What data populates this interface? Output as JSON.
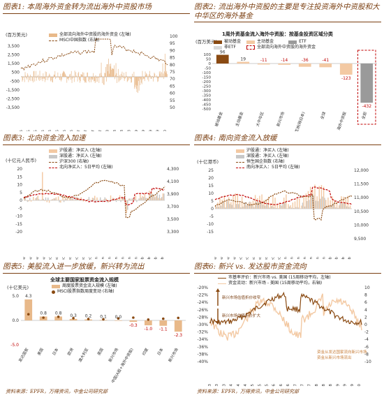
{
  "charts": {
    "c1": {
      "title": "图表1: 本周海外资金转为流出海外中资股市场",
      "unit": "(百万美元)",
      "legend": [
        "全部流向海外中资股的海外资金 (左轴)",
        "MSCI中国指数 (右轴)"
      ],
      "colors": {
        "bar": "#e8b98a",
        "line": "#8a4a12"
      },
      "y_left_ticks": [
        "3,500",
        "2,500",
        "1,500",
        "500",
        "-500",
        "-1,500",
        "-2,500",
        "-3,500"
      ],
      "y_right_ticks": [
        "100",
        "95",
        "90",
        "85",
        "80",
        "75",
        "70",
        "65",
        "60",
        "55",
        "50"
      ],
      "x_ticks": [
        "Jan-15",
        "Apr-15",
        "Jul-15",
        "Oct-15",
        "Jan-16",
        "Apr-16",
        "Jul-16",
        "Oct-16",
        "Jan-17",
        "Apr-17",
        "Jul-17",
        "Oct-17",
        "Jan-18",
        "Apr-18",
        "Jul-18",
        "Oct-18",
        "Jan-19",
        "Apr-19",
        "Jul-19",
        "Oct-19",
        "Jan-20"
      ]
    },
    "c2": {
      "title": "图表2: 流出海外中资股的主要是专注投资海外中资股和大中华区的海外基金",
      "inner_title": "1周外资基金流入海外中资股：按基金投资区域分类",
      "unit": "(百万美元)",
      "legend": [
        "被动基金",
        "主动基金",
        "ETF",
        "非ETF",
        "全部流向海外中资股的海外资金"
      ],
      "colors": {
        "passive": "#8a4a12",
        "active": "#f3c9a3",
        "etf": "#9a9a9a",
        "nonetf": "#d9d9d9",
        "total": "#c00000"
      },
      "y_ticks": [
        "100",
        "50",
        "0",
        "-50",
        "-100",
        "-150",
        "-200",
        "-250",
        "-300",
        "-350",
        "-400",
        "-450",
        "-500"
      ]
    },
    "c3": {
      "title": "图表3: 北向资金流入加速",
      "unit": "(十亿元人民币)",
      "legend": [
        "沪股通：净买入 (左轴)",
        "深股通：净买入 (左轴)",
        "沪深300 (右轴)",
        "北向净买入：5日平均 (左轴)"
      ],
      "colors": {
        "sh": "#f3c9a3",
        "sz": "#c8c8c8",
        "csi": "#8a4a12",
        "avg": "#c00000"
      },
      "y_left_ticks": [
        "20",
        "15",
        "10",
        "5",
        "0",
        "-5",
        "-10",
        "-15",
        "-20"
      ],
      "y_right_ticks": [
        "4,300",
        "4,100",
        "3,900",
        "3,700",
        "3,500",
        "3,300"
      ],
      "x_ticks": [
        "18-Nov",
        "21-Nov",
        "26-Nov",
        "29-Nov",
        "4-Dec",
        "9-Dec",
        "12-Dec",
        "17-Dec",
        "20-Dec",
        "25-Dec",
        "30-Dec",
        "3-Jan",
        "8-Jan",
        "13-Jan",
        "16-Jan",
        "21-Jan",
        "24-Jan",
        "29-Jan",
        "5-Feb",
        "10-Feb",
        "13-Feb",
        "18-Feb"
      ]
    },
    "c4": {
      "title": "图表4: 南向资金流入放缓",
      "unit": "(十亿港币)",
      "legend": [
        "沪股通：净买入 (左轴)",
        "深股通：净买入 (左轴)",
        "恒生国企指数 (右轴)",
        "南向净买入：5日平均 (左轴)"
      ],
      "colors": {
        "sh": "#f3c9a3",
        "sz": "#c8c8c8",
        "hscei": "#8a4a12",
        "avg": "#c00000"
      },
      "y_left_ticks": [
        "25",
        "20",
        "15",
        "10",
        "5",
        "0",
        "-5",
        "-10",
        "-15"
      ],
      "y_right_ticks": [
        "12,000",
        "11,500",
        "11,000",
        "10,500",
        "10,000",
        "9,500"
      ],
      "x_ticks": [
        "18-Nov",
        "21-Nov",
        "26-Nov",
        "29-Nov",
        "4-Dec",
        "9-Dec",
        "12-Dec",
        "17-Dec",
        "20-Dec",
        "25-Dec",
        "30-Dec",
        "3-Jan",
        "8-Jan",
        "13-Jan",
        "16-Jan",
        "21-Jan",
        "24-Jan",
        "29-Jan",
        "5-Feb",
        "10-Feb",
        "13-Feb",
        "18-Feb"
      ]
    },
    "c5": {
      "title": "图表5: 美股流入进一步放缓，新兴转为流出",
      "inner_title": "全球主要国家股票资金流入规模",
      "unit": "(十亿美元)",
      "legend": [
        "周度股票资金流入规模 (左轴)",
        "MSCI股票指数周度变动 (右轴)"
      ],
      "colors": {
        "bar": "#e8b98a",
        "dot": "#8a4a12"
      },
      "y_ticks": [
        "5.0",
        "0.0",
        "-5.0"
      ],
      "categories": [
        "发达国家",
        "美国",
        "日本",
        "欧洲",
        "澳大利亚",
        "英国",
        "新兴市场",
        "中国(A股+海外中资股)",
        "印度",
        "日本",
        "新兴市场"
      ],
      "values_label": [
        "4.3",
        "0.8",
        "0.8",
        "0.3",
        "0.2",
        "0.1",
        "0.0",
        "-0.3",
        "-1.0",
        "-1.1",
        "-2.3"
      ]
    },
    "c6": {
      "title": "图表6: 新兴 vs. 发达股市资金流向",
      "legend": [
        "市基率评价：新兴市场 vs. 美国 (15周移动平均，左轴)",
        "资金流动：新兴市场 - 美国 (15周移动平均，右轴)"
      ],
      "annotations": [
        "新兴市场估值折价收窄",
        "新兴市场估值折价扩大",
        "资金从发达国家流向新兴市场",
        "资金从新兴市场流出"
      ],
      "colors": {
        "pb": "#8a4a12",
        "flow": "#f3c9a3"
      },
      "y_left_ticks": [
        "-20%",
        "-22%",
        "-24%",
        "-26%",
        "-28%",
        "-30%",
        "-32%",
        "-34%",
        "-36%",
        "-38%",
        "-40%"
      ],
      "y_right_ticks": [
        "10",
        "8",
        "6",
        "4",
        "2",
        "0",
        "-2",
        "-4",
        "-6",
        "-8",
        "-10"
      ],
      "x_ticks": [
        "Jan-13",
        "May-13",
        "Sep-13",
        "Jan-14",
        "May-14",
        "Sep-14",
        "Jan-15",
        "May-15",
        "Sep-15",
        "Jan-16",
        "May-16",
        "Sep-16",
        "Jan-17",
        "May-17",
        "Sep-17",
        "Jan-18",
        "May-18",
        "Sep-18",
        "Jan-19",
        "May-19",
        "Sep-19",
        "Jan-20"
      ]
    }
  },
  "chart_data": [
    {
      "type": "bar",
      "categories": [
        "被动基金",
        "主动基金",
        "大中华区",
        "新兴市场",
        "亚洲(除日本)",
        "全球",
        "海外中资股",
        "全部"
      ],
      "series": [
        {
          "name": "被动基金",
          "values": [
            96,
            19,
            -11,
            -14,
            -36,
            -41,
            -123,
            -432
          ]
        }
      ],
      "title": "1周外资基金流入海外中资股：按基金投资区域分类",
      "ylabel": "百万美元",
      "ylim": [
        -500,
        100
      ]
    },
    {
      "type": "bar",
      "categories": [
        "发达国家",
        "美国",
        "日本",
        "欧洲",
        "澳大利亚",
        "英国",
        "新兴市场",
        "中国(A股+海外中资股)",
        "印度",
        "日本",
        "新兴市场"
      ],
      "series": [
        {
          "name": "周度股票资金流入规模 (左轴)",
          "values": [
            4.3,
            0.8,
            0.8,
            0.3,
            0.2,
            0.1,
            0.0,
            -0.3,
            -1.0,
            -1.1,
            -2.3
          ]
        }
      ],
      "title": "全球主要国家股票资金流入规模",
      "ylabel": "十亿美元",
      "ylim": [
        -5,
        5
      ]
    }
  ],
  "footer": {
    "left": "资料来源：EPFR，万得资讯，中金公司研究部",
    "right": "资料来源：EPFR，万得资讯，中金公司研究部"
  }
}
